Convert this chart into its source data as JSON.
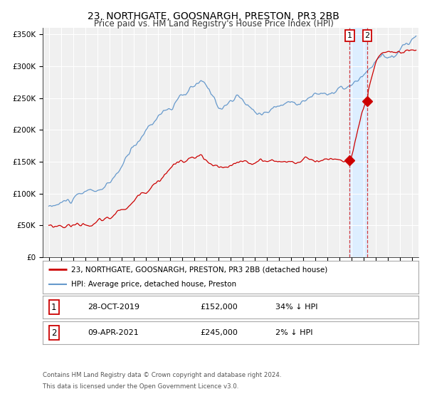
{
  "title": "23, NORTHGATE, GOOSNARGH, PRESTON, PR3 2BB",
  "subtitle": "Price paid vs. HM Land Registry's House Price Index (HPI)",
  "legend_line1": "23, NORTHGATE, GOOSNARGH, PRESTON, PR3 2BB (detached house)",
  "legend_line2": "HPI: Average price, detached house, Preston",
  "footer1": "Contains HM Land Registry data © Crown copyright and database right 2024.",
  "footer2": "This data is licensed under the Open Government Licence v3.0.",
  "point1_date": "28-OCT-2019",
  "point1_price": "£152,000",
  "point1_hpi": "34% ↓ HPI",
  "point2_date": "09-APR-2021",
  "point2_price": "£245,000",
  "point2_hpi": "2% ↓ HPI",
  "point1_x": 2019.83,
  "point1_y_red": 152000,
  "point2_x": 2021.27,
  "point2_y_red": 245000,
  "ylim": [
    0,
    360000
  ],
  "xlim_start": 1994.5,
  "xlim_end": 2025.5,
  "background_color": "#ffffff",
  "plot_bg_color": "#f0f0f0",
  "grid_color": "#ffffff",
  "red_color": "#cc0000",
  "blue_color": "#6699cc",
  "highlight_bg": "#ddeeff",
  "title_fontsize": 10,
  "subtitle_fontsize": 8.5,
  "tick_fontsize": 7,
  "ylabel_fontsize": 7.5
}
